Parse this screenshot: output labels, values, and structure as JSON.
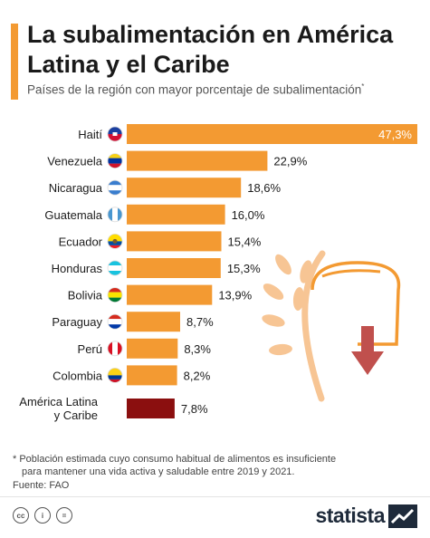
{
  "title": "La subalimentación en América Latina y el Caribe",
  "subtitle": "Países de la región con mayor porcentaje de subalimentación",
  "subtitle_marker": "*",
  "chart_data": {
    "type": "bar",
    "orientation": "horizontal",
    "categories": [
      "Haití",
      "Venezuela",
      "Nicaragua",
      "Guatemala",
      "Ecuador",
      "Honduras",
      "Bolivia",
      "Paraguay",
      "Perú",
      "Colombia",
      "América Latina y Caribe"
    ],
    "values": [
      47.3,
      22.9,
      18.6,
      16.0,
      15.4,
      15.3,
      13.9,
      8.7,
      8.3,
      8.2,
      7.8
    ],
    "value_labels": [
      "47,3%",
      "22,9%",
      "18,6%",
      "16,0%",
      "15,4%",
      "15,3%",
      "13,9%",
      "8,7%",
      "8,3%",
      "8,2%",
      "7,8%"
    ],
    "unit": "%",
    "colors": {
      "country": "#f39a32",
      "region": "#8b0f0f"
    },
    "flags": [
      "haiti-flag-icon",
      "venezuela-flag-icon",
      "nicaragua-flag-icon",
      "guatemala-flag-icon",
      "ecuador-flag-icon",
      "honduras-flag-icon",
      "bolivia-flag-icon",
      "paraguay-flag-icon",
      "peru-flag-icon",
      "colombia-flag-icon",
      ""
    ],
    "xlim": [
      0,
      47.3
    ]
  },
  "illustration": "wheat-decline-icon",
  "footnote": {
    "line1": "* Población estimada cuyo consumo habitual de alimentos es insuficiente",
    "line2": "para mantener una vida activa y saludable entre 2019 y 2021."
  },
  "source": "Fuente: FAO",
  "brand": "statista",
  "license_icons": [
    "cc-icon",
    "by-icon",
    "nd-icon"
  ]
}
